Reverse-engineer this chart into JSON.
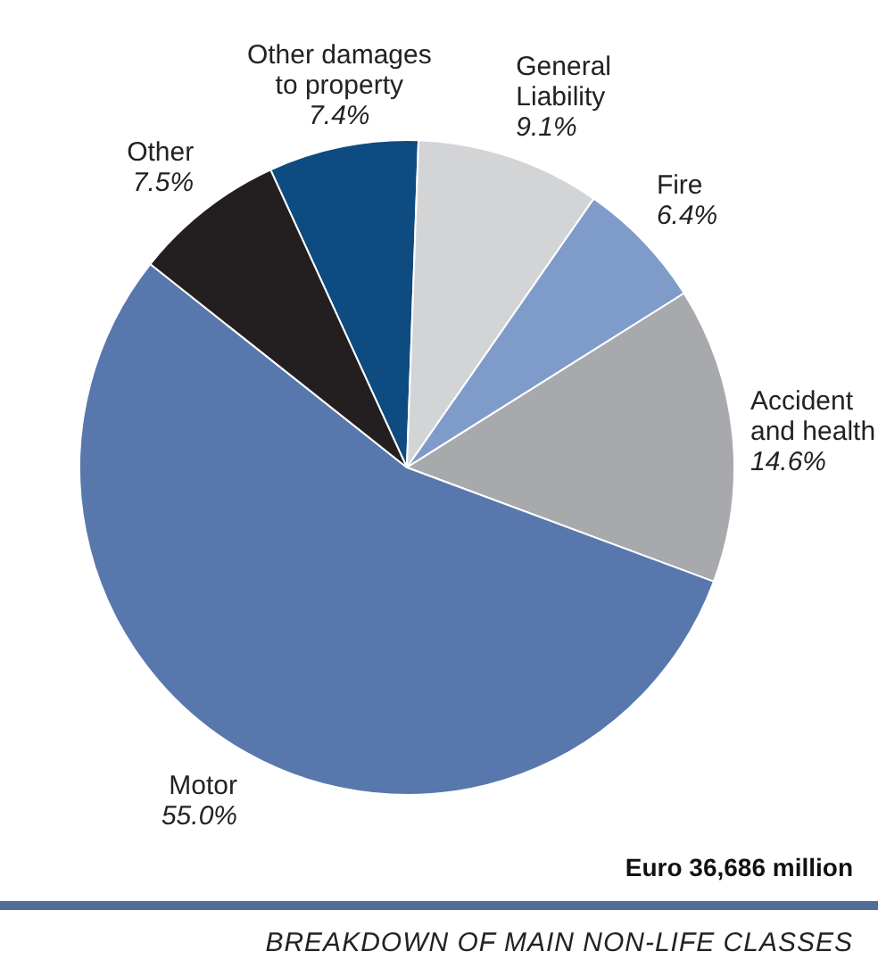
{
  "chart_data": {
    "type": "pie",
    "title": "BREAKDOWN OF MAIN NON-LIFE CLASSES",
    "categories": [
      "Other damages to property",
      "General Liability",
      "Fire",
      "Accident and health",
      "Motor",
      "Other"
    ],
    "values": [
      7.4,
      9.1,
      6.4,
      14.6,
      55.0,
      7.5
    ],
    "value_labels": [
      "7.4%",
      "9.1%",
      "6.4%",
      "14.6%",
      "55.0%",
      "7.5%"
    ],
    "colors": [
      "#0d4b80",
      "#d3d4d6",
      "#7f9bc9",
      "#a7a9ac",
      "#5878ad",
      "#231f20"
    ],
    "annotations": [
      "Euro 36,686 million"
    ],
    "legend": false
  }
}
